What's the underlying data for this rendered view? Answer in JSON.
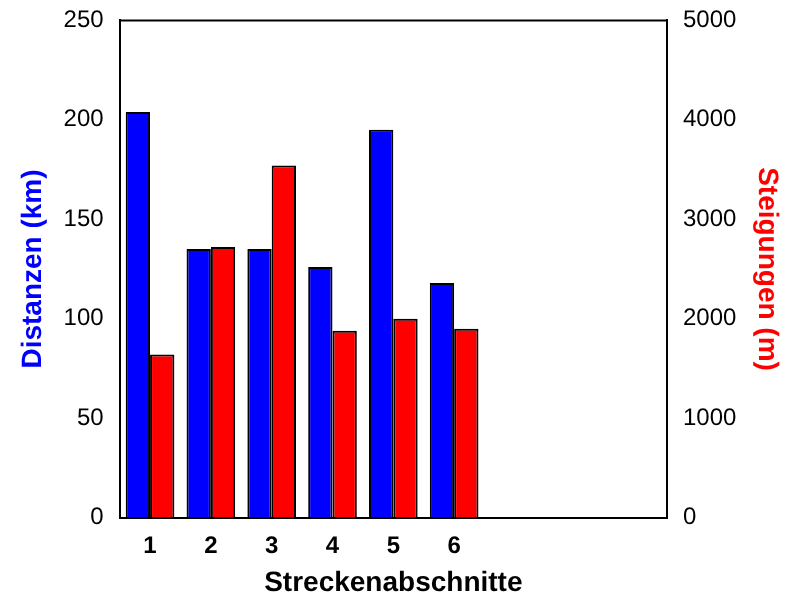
{
  "chart_data": {
    "type": "bar",
    "categories": [
      "1",
      "2",
      "3",
      "4",
      "5",
      "6",
      null,
      null,
      null
    ],
    "xlabel": "Streckenabschnitte",
    "ylabel": "Distanzen (km)",
    "y2label": "Steigungen (m)",
    "series": [
      {
        "color": "#0000ff",
        "values": [
          204,
          135,
          135,
          126,
          195,
          118,
          null,
          null,
          null
        ]
      },
      {
        "color": "#ff0000",
        "axis": "y2",
        "values": [
          1640,
          2720,
          3540,
          1880,
          2000,
          1900,
          null,
          null,
          null
        ]
      }
    ],
    "ylim": [
      0,
      250
    ],
    "yticks": [
      0,
      50,
      100,
      150,
      200,
      250
    ],
    "y2lim": [
      0,
      5000
    ],
    "y2ticks": [
      0,
      1000,
      2000,
      3000,
      4000,
      5000
    ],
    "grid": false,
    "legend": false
  }
}
